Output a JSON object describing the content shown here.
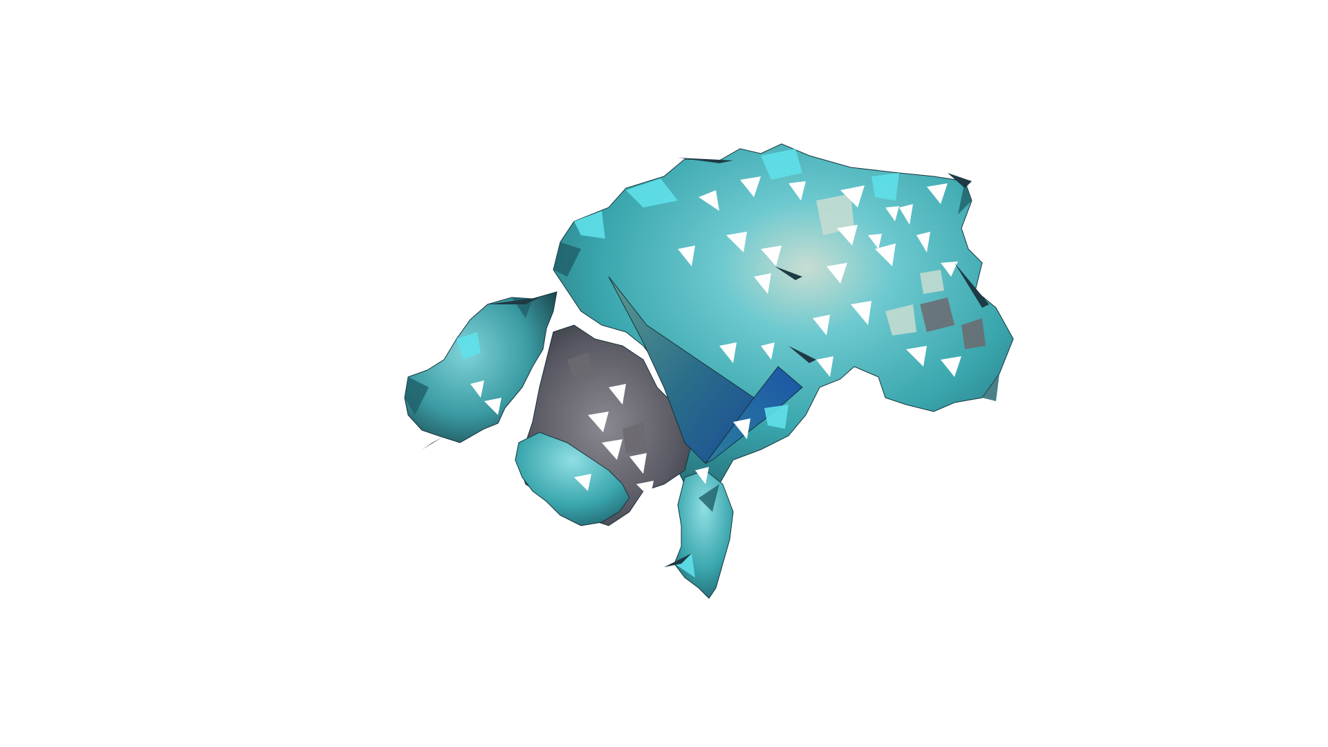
{
  "scene": {
    "background_color": "#ffffff",
    "mesh": {
      "render_style": "low-poly surface mesh with holes",
      "colors": {
        "light": "#9fe3e8",
        "highlight": "#5fe0ea",
        "mid": "#3aa6ad",
        "dark": "#1f5f69",
        "shadow_grey": "#5a5a64",
        "pale": "#c8ddd2",
        "panel_light": "#5e9a8e",
        "panel_dark": "#1a4d96",
        "edge_dark": "#16323a"
      }
    }
  }
}
